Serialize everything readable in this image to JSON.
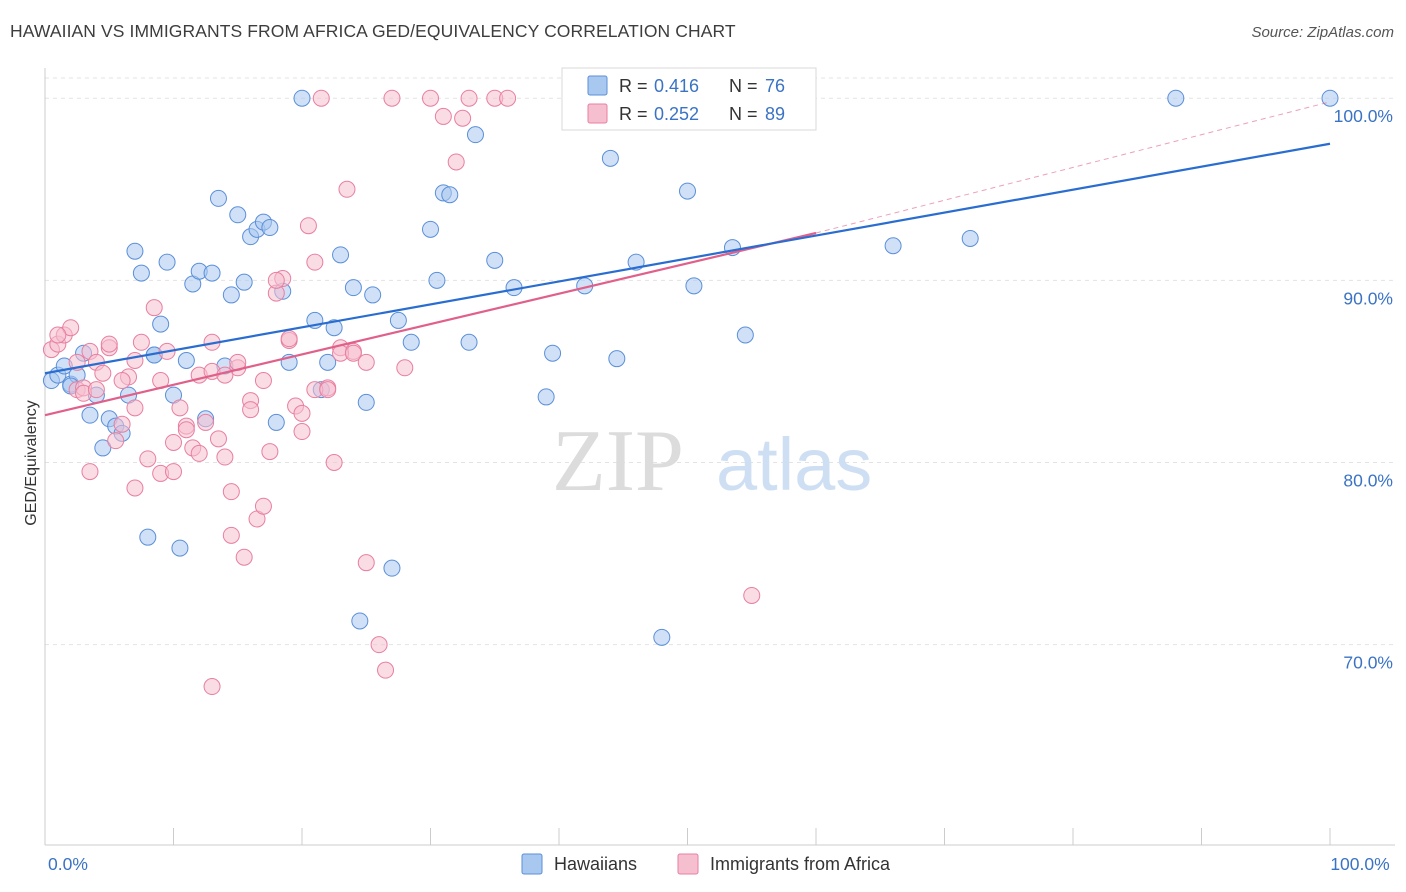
{
  "header": {
    "title": "HAWAIIAN VS IMMIGRANTS FROM AFRICA GED/EQUIVALENCY CORRELATION CHART",
    "source": "Source: ZipAtlas.com"
  },
  "watermark": {
    "zip": "ZIP",
    "atlas": "atlas"
  },
  "colors": {
    "blue_fill": "#a9c8f0",
    "blue_stroke": "#5b8fd8",
    "blue_line": "#2a6dd0",
    "pink_fill": "#f6bfd0",
    "pink_stroke": "#e87fa0",
    "pink_line": "#e0608a",
    "value_text": "#3a73c4",
    "grid": "#e3e3e3"
  },
  "legend_top": {
    "rows": [
      {
        "r_label": "R = ",
        "r_value": "0.416",
        "n_label": "N = ",
        "n_value": "76"
      },
      {
        "r_label": "R = ",
        "r_value": "0.252",
        "n_label": "N = ",
        "n_value": "89"
      }
    ]
  },
  "chart_data": {
    "type": "scatter",
    "title": "HAWAIIAN VS IMMIGRANTS FROM AFRICA GED/EQUIVALENCY CORRELATION CHART",
    "xlabel": "",
    "ylabel": "GED/Equivalency",
    "xlim": [
      0,
      100
    ],
    "ylim": [
      59,
      101
    ],
    "x_tick_labels": [
      "0.0%",
      "100.0%"
    ],
    "y_ticks": [
      70,
      80,
      90,
      100
    ],
    "y_tick_labels": [
      "70.0%",
      "80.0%",
      "90.0%",
      "100.0%"
    ],
    "grid": true,
    "legend_position": "bottom",
    "series": [
      {
        "name": "Hawaiians",
        "r": 0.416,
        "n": 76,
        "trend": {
          "x": [
            0,
            100
          ],
          "y": [
            84.9,
            97.5
          ]
        },
        "points": [
          [
            0.5,
            84.5
          ],
          [
            1,
            84.8
          ],
          [
            1.5,
            85.3
          ],
          [
            2,
            84.3
          ],
          [
            2.5,
            84.8
          ],
          [
            3,
            86
          ],
          [
            3.5,
            82.6
          ],
          [
            4,
            83.7
          ],
          [
            4.5,
            80.8
          ],
          [
            5,
            82.4
          ],
          [
            5.5,
            82
          ],
          [
            6,
            81.6
          ],
          [
            6.5,
            83.7
          ],
          [
            7,
            91.6
          ],
          [
            7.5,
            90.4
          ],
          [
            8,
            75.9
          ],
          [
            8.5,
            85.9
          ],
          [
            9,
            87.6
          ],
          [
            9.5,
            91
          ],
          [
            10,
            83.7
          ],
          [
            10.5,
            75.3
          ],
          [
            11,
            85.6
          ],
          [
            11.5,
            89.8
          ],
          [
            12,
            90.5
          ],
          [
            12.5,
            82.4
          ],
          [
            13,
            90.4
          ],
          [
            13.5,
            94.5
          ],
          [
            14,
            85.3
          ],
          [
            14.5,
            89.2
          ],
          [
            15,
            93.6
          ],
          [
            15.5,
            89.9
          ],
          [
            16,
            92.4
          ],
          [
            16.5,
            92.8
          ],
          [
            17,
            93.2
          ],
          [
            17.5,
            92.9
          ],
          [
            18,
            82.2
          ],
          [
            18.5,
            89.4
          ],
          [
            19,
            85.5
          ],
          [
            20,
            100
          ],
          [
            21,
            87.8
          ],
          [
            21.5,
            84
          ],
          [
            22,
            85.5
          ],
          [
            22.5,
            87.4
          ],
          [
            23,
            91.4
          ],
          [
            24,
            89.6
          ],
          [
            24.5,
            71.3
          ],
          [
            25,
            83.3
          ],
          [
            25.5,
            89.2
          ],
          [
            27,
            74.2
          ],
          [
            27.5,
            87.8
          ],
          [
            28.5,
            86.6
          ],
          [
            30,
            92.8
          ],
          [
            30.5,
            90
          ],
          [
            31,
            94.8
          ],
          [
            31.5,
            94.7
          ],
          [
            33,
            86.6
          ],
          [
            33.5,
            98
          ],
          [
            35,
            91.1
          ],
          [
            36.5,
            89.6
          ],
          [
            39,
            83.6
          ],
          [
            39.5,
            86
          ],
          [
            42,
            89.7
          ],
          [
            44,
            96.7
          ],
          [
            44.5,
            85.7
          ],
          [
            46,
            91
          ],
          [
            48,
            70.4
          ],
          [
            50,
            94.9
          ],
          [
            50.5,
            89.7
          ],
          [
            53.5,
            91.8
          ],
          [
            54.5,
            87
          ],
          [
            66,
            91.9
          ],
          [
            72,
            92.3
          ],
          [
            88,
            100
          ],
          [
            100,
            100
          ],
          [
            2,
            84.2
          ],
          [
            8.5,
            85.9
          ]
        ]
      },
      {
        "name": "Immigrants from Africa",
        "r": 0.252,
        "n": 89,
        "trend": {
          "x": [
            0,
            60
          ],
          "y": [
            82.6,
            92.6
          ]
        },
        "extrapolation": {
          "x": [
            60,
            100
          ],
          "y": [
            92.6,
            99.8
          ]
        },
        "points": [
          [
            0.5,
            86.2
          ],
          [
            1,
            86.5
          ],
          [
            1.5,
            87
          ],
          [
            2,
            87.4
          ],
          [
            2.5,
            84
          ],
          [
            3,
            84.1
          ],
          [
            3.5,
            86.1
          ],
          [
            4,
            85.5
          ],
          [
            4.5,
            84.9
          ],
          [
            5,
            86.3
          ],
          [
            5.5,
            81.2
          ],
          [
            6,
            82.1
          ],
          [
            6.5,
            84.7
          ],
          [
            7,
            85.6
          ],
          [
            7.5,
            86.6
          ],
          [
            8,
            80.2
          ],
          [
            8.5,
            88.5
          ],
          [
            9,
            79.4
          ],
          [
            9.5,
            86.1
          ],
          [
            10,
            81.1
          ],
          [
            10.5,
            83
          ],
          [
            11,
            82
          ],
          [
            11.5,
            80.8
          ],
          [
            12,
            84.8
          ],
          [
            12.5,
            82.2
          ],
          [
            13,
            86.6
          ],
          [
            13.5,
            81.3
          ],
          [
            14,
            80.3
          ],
          [
            14.5,
            76
          ],
          [
            15,
            85.2
          ],
          [
            15.5,
            74.8
          ],
          [
            16,
            83.4
          ],
          [
            16.5,
            76.9
          ],
          [
            17,
            77.6
          ],
          [
            17.5,
            80.6
          ],
          [
            18,
            89.3
          ],
          [
            18.5,
            90.1
          ],
          [
            19,
            86.7
          ],
          [
            19.5,
            83.1
          ],
          [
            20,
            82.7
          ],
          [
            20.5,
            93
          ],
          [
            21,
            91
          ],
          [
            21.5,
            100
          ],
          [
            22,
            84.1
          ],
          [
            22.5,
            80
          ],
          [
            23,
            86.3
          ],
          [
            23.5,
            95
          ],
          [
            24,
            86.1
          ],
          [
            25,
            74.5
          ],
          [
            26,
            70
          ],
          [
            26.5,
            68.6
          ],
          [
            27,
            100
          ],
          [
            28,
            85.2
          ],
          [
            30,
            100
          ],
          [
            31,
            99
          ],
          [
            32,
            96.5
          ],
          [
            32.5,
            98.9
          ],
          [
            33,
            100
          ],
          [
            35,
            100
          ],
          [
            36,
            100
          ],
          [
            55,
            72.7
          ],
          [
            1,
            87
          ],
          [
            2.5,
            85.5
          ],
          [
            3,
            83.8
          ],
          [
            4,
            84
          ],
          [
            5,
            86.5
          ],
          [
            6,
            84.5
          ],
          [
            7,
            83
          ],
          [
            9,
            84.5
          ],
          [
            10,
            79.5
          ],
          [
            11,
            81.8
          ],
          [
            12,
            80.5
          ],
          [
            13,
            85
          ],
          [
            14,
            84.8
          ],
          [
            15,
            85.5
          ],
          [
            16,
            82.9
          ],
          [
            17,
            84.5
          ],
          [
            18,
            90
          ],
          [
            19,
            86.8
          ],
          [
            20,
            81.7
          ],
          [
            21,
            84
          ],
          [
            22,
            84
          ],
          [
            23,
            86
          ],
          [
            24,
            86
          ],
          [
            25,
            85.5
          ],
          [
            13,
            67.7
          ],
          [
            14.5,
            78.4
          ],
          [
            7,
            78.6
          ],
          [
            3.5,
            79.5
          ]
        ]
      }
    ]
  },
  "legend_bottom": {
    "items": [
      {
        "label": "Hawaiians"
      },
      {
        "label": "Immigrants from Africa"
      }
    ]
  }
}
